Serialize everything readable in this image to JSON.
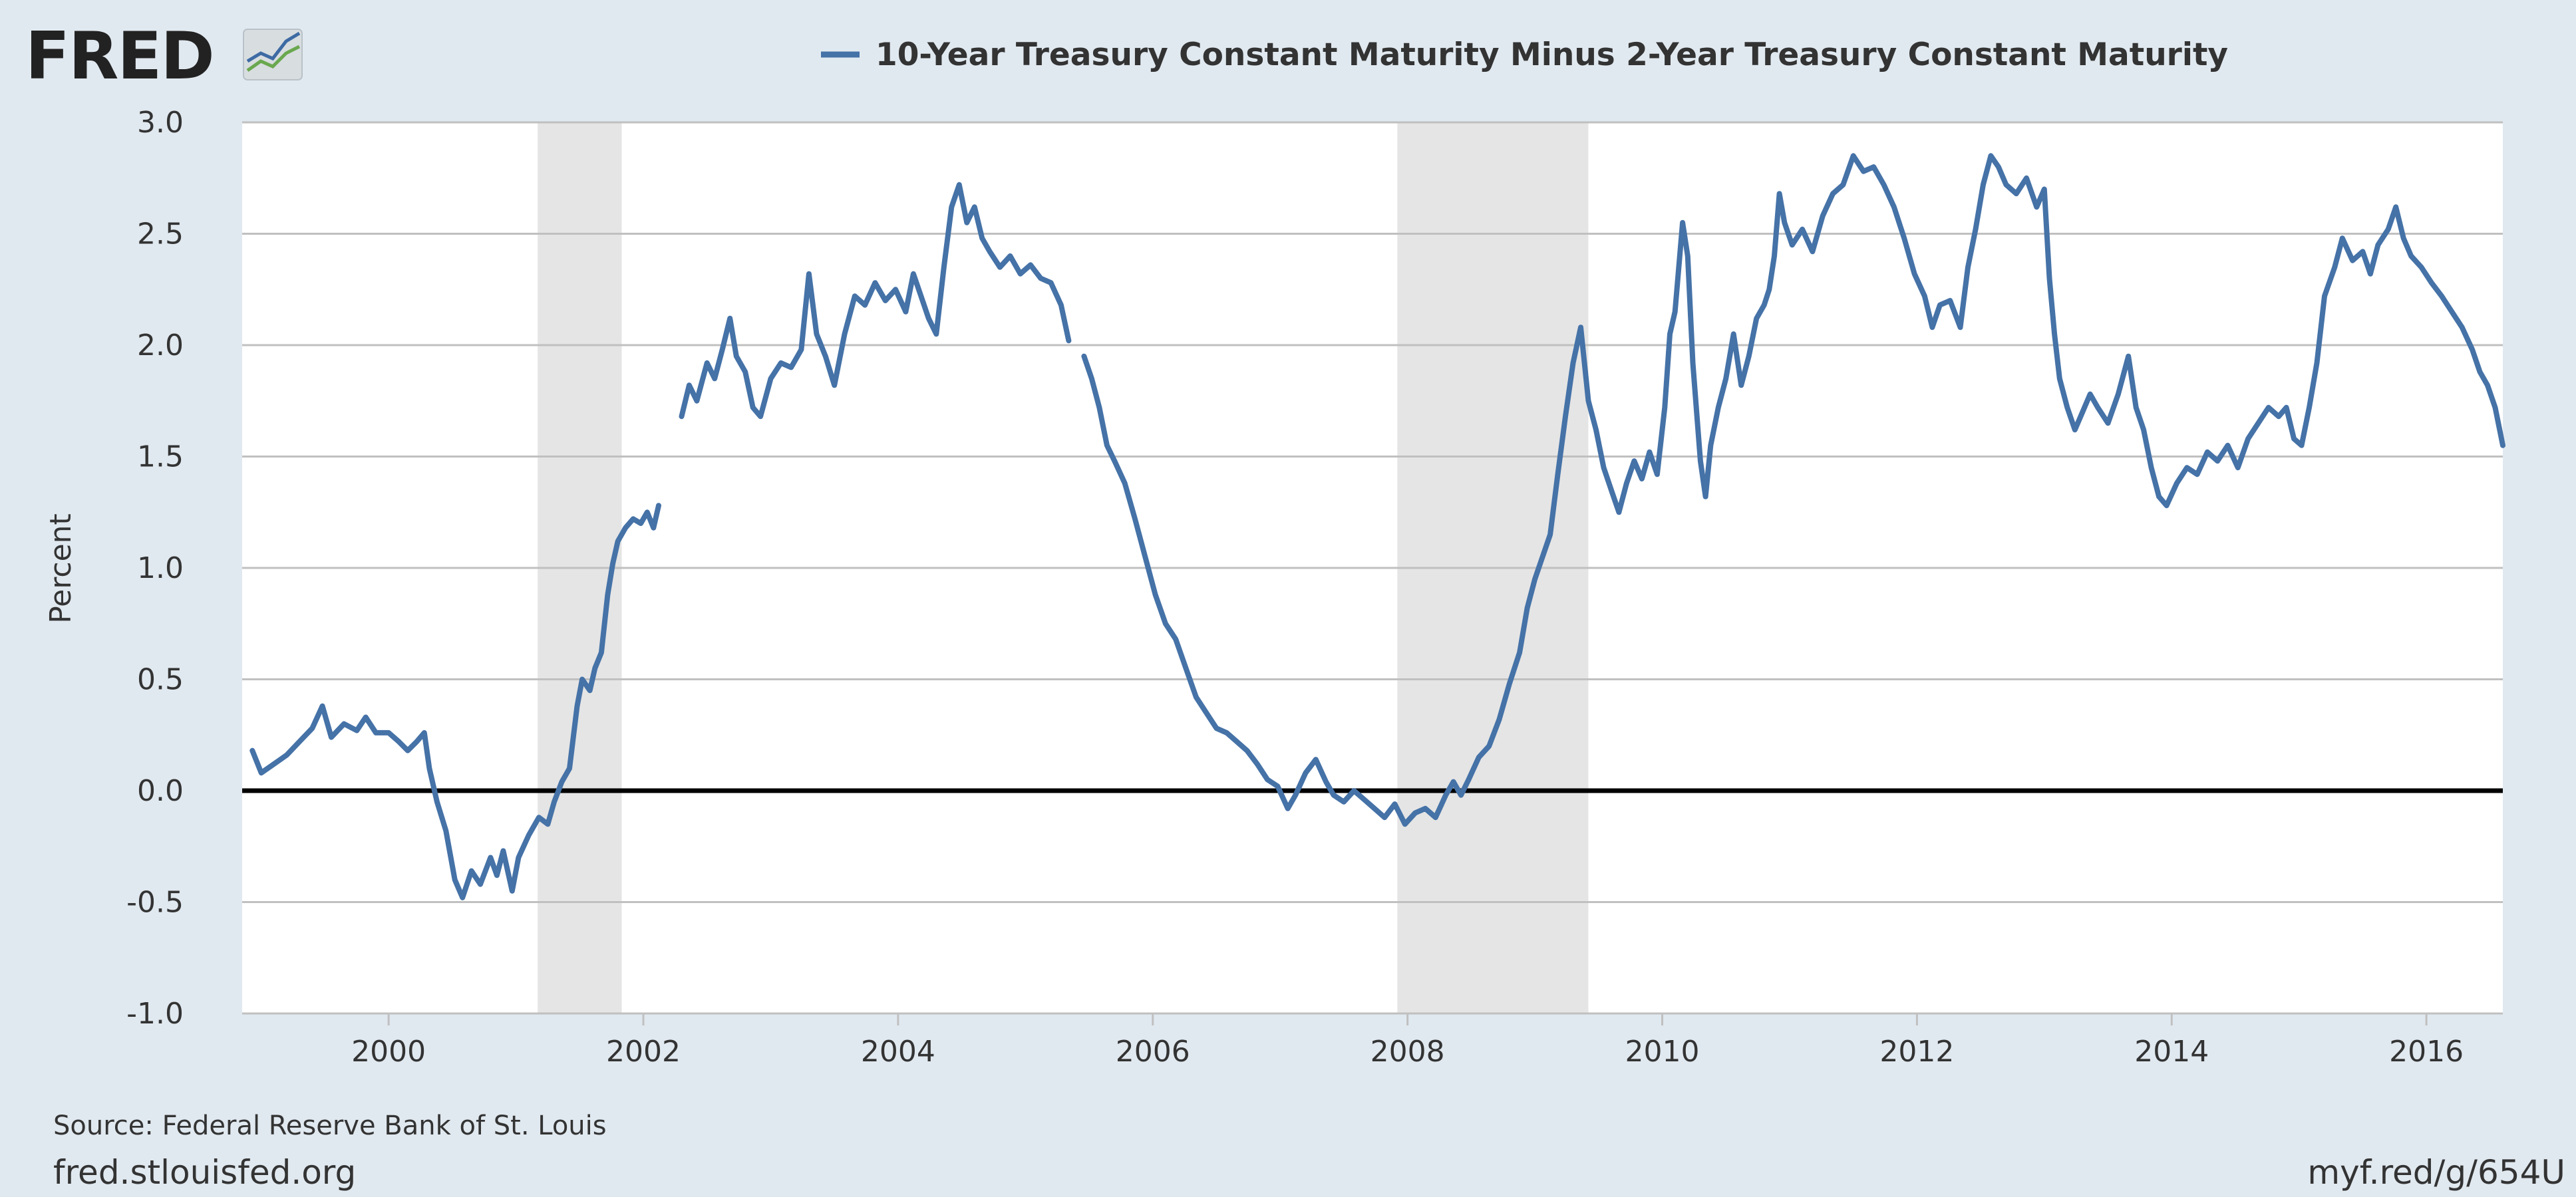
{
  "logo": {
    "text": "FRED"
  },
  "footer": {
    "source": "Source: Federal Reserve Bank of St. Louis",
    "site": "fred.stlouisfed.org",
    "short_link": "myf.red/g/654U"
  },
  "colors": {
    "background": "#e1e9f0",
    "plot_background": "#ffffff",
    "series_line": "#4572a7",
    "recession_band": "#e5e5e5",
    "gridline": "#c0c0c0",
    "zero_line": "#000000"
  },
  "chart_data": {
    "type": "line",
    "title": "",
    "ylabel": "Percent",
    "xlabel": "",
    "xlim": [
      1998.85,
      2016.6
    ],
    "ylim": [
      -1.0,
      3.0
    ],
    "grid": true,
    "legend_position": "top-center",
    "x_ticks": [
      2000,
      2002,
      2004,
      2006,
      2008,
      2010,
      2012,
      2014,
      2016
    ],
    "x_tick_labels": [
      "2000",
      "2002",
      "2004",
      "2006",
      "2008",
      "2010",
      "2012",
      "2014",
      "2016"
    ],
    "y_ticks": [
      3.0,
      2.5,
      2.0,
      1.5,
      1.0,
      0.5,
      0.0,
      -0.5,
      -1.0
    ],
    "y_tick_labels": [
      "3.0",
      "2.5",
      "2.0",
      "1.5",
      "1.0",
      "0.5",
      "0.0",
      "-0.5",
      "-1.0"
    ],
    "reference_lines": [
      0.0
    ],
    "recessions": [
      {
        "start": 2001.17,
        "end": 2001.83
      },
      {
        "start": 2007.92,
        "end": 2009.42
      }
    ],
    "series": [
      {
        "name": "10-Year Treasury Constant Maturity Minus 2-Year Treasury Constant Maturity",
        "segments": [
          [
            [
              1998.93,
              0.18
            ],
            [
              1999.0,
              0.08
            ],
            [
              1999.1,
              0.12
            ],
            [
              1999.2,
              0.16
            ],
            [
              1999.3,
              0.22
            ],
            [
              1999.4,
              0.28
            ],
            [
              1999.48,
              0.38
            ],
            [
              1999.55,
              0.24
            ],
            [
              1999.65,
              0.3
            ],
            [
              1999.75,
              0.27
            ],
            [
              1999.82,
              0.33
            ],
            [
              1999.9,
              0.26
            ],
            [
              2000.0,
              0.26
            ],
            [
              2000.08,
              0.22
            ],
            [
              2000.15,
              0.18
            ],
            [
              2000.22,
              0.22
            ],
            [
              2000.28,
              0.26
            ],
            [
              2000.32,
              0.1
            ],
            [
              2000.38,
              -0.05
            ],
            [
              2000.45,
              -0.18
            ],
            [
              2000.52,
              -0.4
            ],
            [
              2000.58,
              -0.48
            ],
            [
              2000.65,
              -0.36
            ],
            [
              2000.72,
              -0.42
            ],
            [
              2000.8,
              -0.3
            ],
            [
              2000.85,
              -0.38
            ],
            [
              2000.9,
              -0.27
            ],
            [
              2000.97,
              -0.45
            ],
            [
              2001.02,
              -0.3
            ],
            [
              2001.1,
              -0.2
            ],
            [
              2001.18,
              -0.12
            ],
            [
              2001.25,
              -0.15
            ],
            [
              2001.3,
              -0.05
            ],
            [
              2001.36,
              0.04
            ],
            [
              2001.42,
              0.1
            ],
            [
              2001.48,
              0.38
            ],
            [
              2001.52,
              0.5
            ],
            [
              2001.58,
              0.45
            ],
            [
              2001.62,
              0.55
            ],
            [
              2001.67,
              0.62
            ],
            [
              2001.72,
              0.88
            ],
            [
              2001.76,
              1.02
            ],
            [
              2001.8,
              1.12
            ],
            [
              2001.86,
              1.18
            ],
            [
              2001.92,
              1.22
            ],
            [
              2001.98,
              1.2
            ],
            [
              2002.03,
              1.25
            ],
            [
              2002.08,
              1.18
            ],
            [
              2002.12,
              1.28
            ]
          ],
          [
            [
              2002.3,
              1.68
            ],
            [
              2002.36,
              1.82
            ],
            [
              2002.42,
              1.75
            ],
            [
              2002.5,
              1.92
            ],
            [
              2002.56,
              1.85
            ],
            [
              2002.62,
              1.98
            ],
            [
              2002.68,
              2.12
            ],
            [
              2002.73,
              1.95
            ],
            [
              2002.8,
              1.88
            ],
            [
              2002.86,
              1.72
            ],
            [
              2002.92,
              1.68
            ],
            [
              2003.0,
              1.85
            ],
            [
              2003.08,
              1.92
            ],
            [
              2003.16,
              1.9
            ],
            [
              2003.24,
              1.98
            ],
            [
              2003.3,
              2.32
            ],
            [
              2003.36,
              2.05
            ],
            [
              2003.43,
              1.95
            ],
            [
              2003.5,
              1.82
            ],
            [
              2003.58,
              2.05
            ],
            [
              2003.66,
              2.22
            ],
            [
              2003.74,
              2.18
            ],
            [
              2003.82,
              2.28
            ],
            [
              2003.9,
              2.2
            ],
            [
              2003.98,
              2.25
            ],
            [
              2004.06,
              2.15
            ],
            [
              2004.12,
              2.32
            ],
            [
              2004.18,
              2.22
            ],
            [
              2004.24,
              2.12
            ],
            [
              2004.3,
              2.05
            ],
            [
              2004.36,
              2.35
            ],
            [
              2004.42,
              2.62
            ],
            [
              2004.48,
              2.72
            ],
            [
              2004.54,
              2.55
            ],
            [
              2004.6,
              2.62
            ],
            [
              2004.66,
              2.48
            ],
            [
              2004.72,
              2.42
            ],
            [
              2004.8,
              2.35
            ],
            [
              2004.88,
              2.4
            ],
            [
              2004.96,
              2.32
            ],
            [
              2005.04,
              2.36
            ],
            [
              2005.12,
              2.3
            ],
            [
              2005.2,
              2.28
            ],
            [
              2005.28,
              2.18
            ],
            [
              2005.34,
              2.02
            ]
          ],
          [
            [
              2005.46,
              1.95
            ],
            [
              2005.52,
              1.85
            ],
            [
              2005.58,
              1.72
            ],
            [
              2005.64,
              1.55
            ],
            [
              2005.7,
              1.48
            ],
            [
              2005.78,
              1.38
            ],
            [
              2005.86,
              1.22
            ],
            [
              2005.94,
              1.05
            ],
            [
              2006.02,
              0.88
            ],
            [
              2006.1,
              0.75
            ],
            [
              2006.18,
              0.68
            ],
            [
              2006.26,
              0.55
            ],
            [
              2006.34,
              0.42
            ],
            [
              2006.42,
              0.35
            ],
            [
              2006.5,
              0.28
            ],
            [
              2006.58,
              0.26
            ],
            [
              2006.66,
              0.22
            ],
            [
              2006.74,
              0.18
            ],
            [
              2006.82,
              0.12
            ],
            [
              2006.9,
              0.05
            ],
            [
              2006.98,
              0.02
            ],
            [
              2007.06,
              -0.08
            ],
            [
              2007.12,
              -0.02
            ],
            [
              2007.2,
              0.08
            ],
            [
              2007.28,
              0.14
            ],
            [
              2007.36,
              0.04
            ],
            [
              2007.42,
              -0.02
            ],
            [
              2007.5,
              -0.05
            ],
            [
              2007.58,
              0.0
            ],
            [
              2007.66,
              -0.04
            ],
            [
              2007.74,
              -0.08
            ],
            [
              2007.82,
              -0.12
            ],
            [
              2007.9,
              -0.06
            ],
            [
              2007.98,
              -0.15
            ],
            [
              2008.06,
              -0.1
            ],
            [
              2008.14,
              -0.08
            ],
            [
              2008.22,
              -0.12
            ],
            [
              2008.3,
              -0.02
            ],
            [
              2008.36,
              0.04
            ],
            [
              2008.42,
              -0.02
            ],
            [
              2008.48,
              0.05
            ],
            [
              2008.56,
              0.15
            ],
            [
              2008.64,
              0.2
            ],
            [
              2008.72,
              0.32
            ],
            [
              2008.8,
              0.48
            ],
            [
              2008.88,
              0.62
            ],
            [
              2008.94,
              0.82
            ],
            [
              2009.0,
              0.95
            ],
            [
              2009.06,
              1.05
            ],
            [
              2009.12,
              1.15
            ],
            [
              2009.18,
              1.42
            ],
            [
              2009.24,
              1.68
            ],
            [
              2009.3,
              1.92
            ],
            [
              2009.36,
              2.08
            ],
            [
              2009.42,
              1.75
            ],
            [
              2009.48,
              1.62
            ],
            [
              2009.54,
              1.45
            ],
            [
              2009.6,
              1.35
            ],
            [
              2009.66,
              1.25
            ],
            [
              2009.72,
              1.38
            ],
            [
              2009.78,
              1.48
            ],
            [
              2009.84,
              1.4
            ],
            [
              2009.9,
              1.52
            ],
            [
              2009.96,
              1.42
            ],
            [
              2010.02,
              1.72
            ],
            [
              2010.06,
              2.05
            ],
            [
              2010.1,
              2.15
            ],
            [
              2010.16,
              2.55
            ],
            [
              2010.2,
              2.4
            ],
            [
              2010.24,
              1.92
            ],
            [
              2010.3,
              1.48
            ],
            [
              2010.34,
              1.32
            ],
            [
              2010.38,
              1.55
            ],
            [
              2010.44,
              1.72
            ],
            [
              2010.5,
              1.85
            ],
            [
              2010.56,
              2.05
            ],
            [
              2010.62,
              1.82
            ],
            [
              2010.68,
              1.95
            ],
            [
              2010.74,
              2.12
            ],
            [
              2010.8,
              2.18
            ],
            [
              2010.84,
              2.25
            ],
            [
              2010.88,
              2.4
            ],
            [
              2010.92,
              2.68
            ],
            [
              2010.96,
              2.55
            ],
            [
              2011.02,
              2.45
            ],
            [
              2011.1,
              2.52
            ],
            [
              2011.18,
              2.42
            ],
            [
              2011.26,
              2.58
            ],
            [
              2011.34,
              2.68
            ],
            [
              2011.42,
              2.72
            ],
            [
              2011.5,
              2.85
            ],
            [
              2011.58,
              2.78
            ],
            [
              2011.66,
              2.8
            ],
            [
              2011.74,
              2.72
            ],
            [
              2011.82,
              2.62
            ],
            [
              2011.9,
              2.48
            ],
            [
              2011.98,
              2.32
            ],
            [
              2012.06,
              2.22
            ],
            [
              2012.12,
              2.08
            ],
            [
              2012.18,
              2.18
            ],
            [
              2012.26,
              2.2
            ],
            [
              2012.34,
              2.08
            ],
            [
              2012.4,
              2.35
            ],
            [
              2012.46,
              2.52
            ],
            [
              2012.52,
              2.72
            ],
            [
              2012.58,
              2.85
            ],
            [
              2012.64,
              2.8
            ],
            [
              2012.7,
              2.72
            ],
            [
              2012.78,
              2.68
            ],
            [
              2012.86,
              2.75
            ],
            [
              2012.94,
              2.62
            ],
            [
              2013.0,
              2.7
            ],
            [
              2013.04,
              2.3
            ],
            [
              2013.08,
              2.05
            ],
            [
              2013.12,
              1.85
            ],
            [
              2013.18,
              1.72
            ],
            [
              2013.24,
              1.62
            ],
            [
              2013.3,
              1.7
            ],
            [
              2013.36,
              1.78
            ],
            [
              2013.42,
              1.72
            ],
            [
              2013.5,
              1.65
            ],
            [
              2013.58,
              1.78
            ],
            [
              2013.66,
              1.95
            ],
            [
              2013.72,
              1.72
            ],
            [
              2013.78,
              1.62
            ],
            [
              2013.84,
              1.45
            ],
            [
              2013.9,
              1.32
            ],
            [
              2013.96,
              1.28
            ],
            [
              2014.04,
              1.38
            ],
            [
              2014.12,
              1.45
            ],
            [
              2014.2,
              1.42
            ],
            [
              2014.28,
              1.52
            ],
            [
              2014.36,
              1.48
            ],
            [
              2014.44,
              1.55
            ],
            [
              2014.52,
              1.45
            ],
            [
              2014.6,
              1.58
            ],
            [
              2014.68,
              1.65
            ],
            [
              2014.76,
              1.72
            ],
            [
              2014.84,
              1.68
            ],
            [
              2014.9,
              1.72
            ],
            [
              2014.96,
              1.58
            ],
            [
              2015.02,
              1.55
            ],
            [
              2015.08,
              1.72
            ],
            [
              2015.14,
              1.92
            ],
            [
              2015.2,
              2.22
            ],
            [
              2015.28,
              2.35
            ],
            [
              2015.34,
              2.48
            ],
            [
              2015.42,
              2.38
            ],
            [
              2015.5,
              2.42
            ],
            [
              2015.56,
              2.32
            ],
            [
              2015.62,
              2.45
            ],
            [
              2015.7,
              2.52
            ],
            [
              2015.76,
              2.62
            ],
            [
              2015.82,
              2.48
            ],
            [
              2015.88,
              2.4
            ],
            [
              2015.96,
              2.35
            ],
            [
              2016.04,
              2.28
            ],
            [
              2016.12,
              2.22
            ],
            [
              2016.2,
              2.15
            ],
            [
              2016.28,
              2.08
            ],
            [
              2016.36,
              1.98
            ],
            [
              2016.42,
              1.88
            ],
            [
              2016.48,
              1.82
            ],
            [
              2016.54,
              1.72
            ],
            [
              2016.6,
              1.55
            ]
          ]
        ]
      }
    ]
  }
}
